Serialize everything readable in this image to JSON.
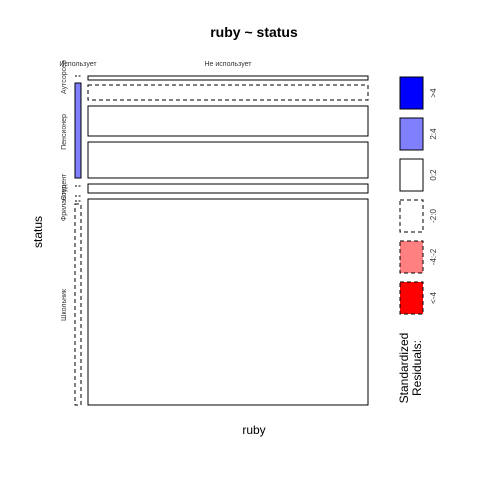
{
  "chart_data": {
    "type": "mosaic",
    "title": "ruby ~ status",
    "xlabel": "ruby",
    "ylabel": "status",
    "x_categories": [
      "Использует",
      "Не использует"
    ],
    "y_categories": [
      "Аутсорсер",
      "Пенсионер",
      "Студент",
      "Фрилансер",
      "Школьник"
    ],
    "residual_shading": [
      {
        "row": "Аутсорсер",
        "col": "Использует",
        "shade": "<-4:-2>",
        "rel_height": 0.02
      },
      {
        "row": "Аутсорсер",
        "col": "Не использует",
        "shade": "<-2:0>",
        "rel_height": 0.02
      },
      {
        "row": "Пенсионер",
        "col": "Использует",
        "shade": "2:4",
        "rel_height": 0.3
      },
      {
        "row": "Пенсионер",
        "col": "Не использует",
        "shade": "0:2",
        "rel_height": 0.3
      },
      {
        "row": "Студент",
        "col": "Использует",
        "shade": "<-2:0>",
        "rel_height": 0.01
      },
      {
        "row": "Студент",
        "col": "Не использует",
        "shade": "0:2",
        "rel_height": 0.01
      },
      {
        "row": "Фрилансер",
        "col": "Использует",
        "shade": "<-2:0>",
        "rel_height": 0.01
      },
      {
        "row": "Фрилансер",
        "col": "Не использует",
        "shade": "0:2",
        "rel_height": 0.01
      },
      {
        "row": "Школьник",
        "col": "Использует",
        "shade": "<-2:0>",
        "rel_height": 0.66
      },
      {
        "row": "Школьник",
        "col": "Не использует",
        "shade": "0:2",
        "rel_height": 0.66
      }
    ],
    "legend": {
      "title": "Standardized\nResiduals:",
      "entries": [
        {
          "label": ">4",
          "fill": "#0000ff",
          "dashed": false
        },
        {
          "label": "2:4",
          "fill": "#8080ff",
          "dashed": false
        },
        {
          "label": "0:2",
          "fill": "#ffffff",
          "dashed": false
        },
        {
          "label": "-2:0",
          "fill": "#ffffff",
          "dashed": true
        },
        {
          "label": "-4:-2",
          "fill": "#ff8080",
          "dashed": true
        },
        {
          "label": "<-4",
          "fill": "#ff0000",
          "dashed": true
        }
      ]
    }
  }
}
